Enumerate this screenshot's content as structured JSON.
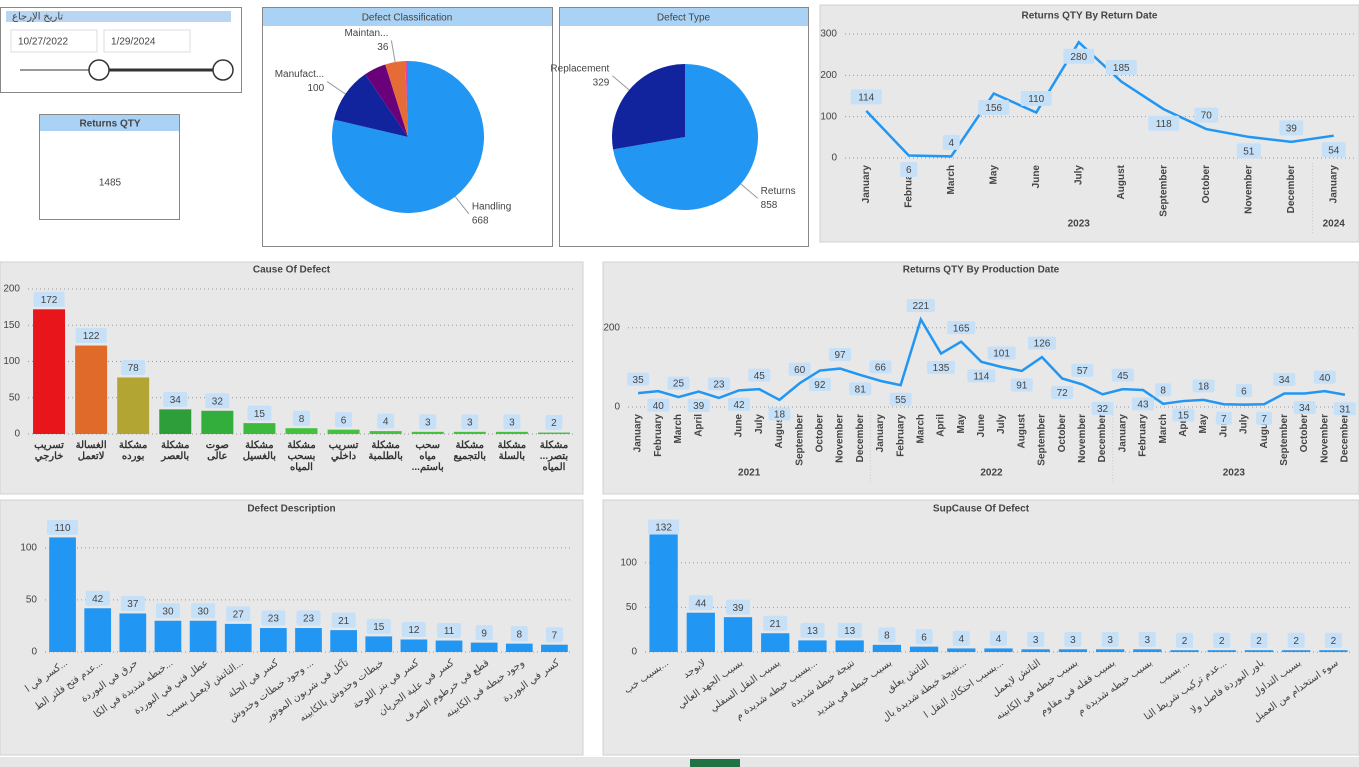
{
  "slicer": {
    "title": "تاريخ الإرجاع",
    "start": "10/27/2022",
    "end": "1/29/2024"
  },
  "card": {
    "title": "Returns QTY",
    "value": 1485
  },
  "chart_data": [
    {
      "type": "pie",
      "title": "Defect Classification",
      "categories": [
        "Handling",
        "Manufact...",
        null,
        "Maintan...",
        null
      ],
      "values": [
        668,
        100,
        40,
        36,
        5
      ],
      "colors": [
        "#2196f3",
        "#12239e",
        "#6b007b",
        "#e66c37",
        "#e044a7"
      ]
    },
    {
      "type": "pie",
      "title": "Defect Type",
      "categories": [
        "Returns",
        "Replacement"
      ],
      "values": [
        858,
        329
      ],
      "colors": [
        "#2196f3",
        "#12239e"
      ]
    },
    {
      "type": "line",
      "title": "Returns QTY By Return Date",
      "categories": [
        "January",
        "February",
        "March",
        "May",
        "June",
        "July",
        "August",
        "September",
        "October",
        "November",
        "December",
        "January"
      ],
      "years": [
        "2023",
        "2023",
        "2023",
        "2023",
        "2023",
        "2023",
        "2023",
        "2023",
        "2023",
        "2023",
        "2023",
        "2024"
      ],
      "values": [
        114,
        6,
        4,
        156,
        110,
        280,
        185,
        118,
        70,
        51,
        39,
        54
      ],
      "color": "#2196f3",
      "ylim": [
        0,
        300
      ],
      "yticks": [
        0,
        100,
        200,
        300
      ],
      "grid": true
    },
    {
      "type": "bar",
      "title": "Cause Of Defect",
      "categories": [
        "تسريب خارجي",
        "الغسالة لاتعمل",
        "مشكلة بورده",
        "مشكلة بالعصر",
        "صوت عالى",
        "مشكلة بالغسيل",
        "مشكلة بسحب المياه",
        "تسريب داخلي",
        "مشكلة بالطلمبة",
        "سحب مياه باستم...",
        "مشكلة بالتجميع",
        "مشكلة بالسلة",
        "مشكلة بتصر... المياه"
      ],
      "values": [
        172,
        122,
        78,
        34,
        32,
        15,
        8,
        6,
        4,
        3,
        3,
        3,
        2
      ],
      "colors": [
        "#e8151b",
        "#e06a2a",
        "#b3a533",
        "#2e9e3a",
        "#33ad3c",
        "#3dba3d",
        "#45c23d",
        "#45c23d",
        "#45c23d",
        "#45c23d",
        "#45c23d",
        "#45c23d",
        "#45c23d"
      ],
      "ylim": [
        0,
        200
      ],
      "yticks": [
        0,
        50,
        100,
        150,
        200
      ],
      "grid": true
    },
    {
      "type": "line",
      "title": "Returns QTY By Production Date",
      "categories": [
        "January",
        "February",
        "March",
        "April",
        null,
        "June",
        "July",
        "August",
        "September",
        "October",
        "November",
        "December",
        "January",
        "February",
        "March",
        "April",
        "May",
        "June",
        "July",
        "August",
        "September",
        "October",
        "November",
        "December",
        "January",
        "February",
        "March",
        "April",
        "May",
        "June",
        "July",
        "August",
        "September",
        "October",
        "November",
        "December"
      ],
      "years": [
        "2021",
        "2021",
        "2021",
        "2021",
        "2021",
        "2021",
        "2021",
        "2021",
        "2021",
        "2021",
        "2021",
        "2021",
        "2022",
        "2022",
        "2022",
        "2022",
        "2022",
        "2022",
        "2022",
        "2022",
        "2022",
        "2022",
        "2022",
        "2022",
        "2023",
        "2023",
        "2023",
        "2023",
        "2023",
        "2023",
        "2023",
        "2023",
        "2023",
        "2023",
        "2023",
        "2023"
      ],
      "values": [
        35,
        40,
        25,
        39,
        23,
        42,
        45,
        18,
        60,
        92,
        97,
        81,
        66,
        55,
        221,
        135,
        165,
        114,
        101,
        91,
        126,
        72,
        57,
        32,
        45,
        43,
        8,
        15,
        18,
        7,
        6,
        7,
        34,
        34,
        40,
        31
      ],
      "color": "#2196f3",
      "ylim": [
        0,
        260
      ],
      "yticks": [
        0,
        200
      ],
      "grid": true
    },
    {
      "type": "bar",
      "title": "Defect Description",
      "categories": [
        "كسر في ا...",
        "عدم فتح فلتر الط...",
        "حرق في البوردة",
        "خبطه شديدة في الكا...",
        "عطل فني في البوردة",
        "التاتش لايعمل بسبب...",
        "كسر في الحلة",
        "وجود خبطات وخدوش ...",
        "تآكل في شربون الموتور",
        "خبطات وخدوش بالكابينه",
        "كسر في بنز اللوحة",
        "كسر في علبة الجريان",
        "قطع في خرطوم الصرف",
        "وجود خبطه في الكابينه",
        "كسر في البوردة"
      ],
      "values": [
        110,
        42,
        37,
        30,
        30,
        27,
        23,
        23,
        21,
        15,
        12,
        11,
        9,
        8,
        7
      ],
      "color": "#2196f3",
      "ylim": [
        0,
        120
      ],
      "yticks": [
        0,
        50,
        100
      ],
      "grid": true
    },
    {
      "type": "bar",
      "title": "SupCause Of Defect",
      "categories": [
        "بسبب خب...",
        "لايوجد",
        "بسبب الجهد العالي",
        "بسبب النقل السفلي",
        "بسبب خبطه شديدة م...",
        "نتيجة خبطة شديدة",
        "بسبب خبطه في شديد",
        "التاتش يعلق",
        "نتيجة خبطة شديدة بال...",
        "بسبب احتكاك النقل ا...",
        "التاتش لايعمل",
        "بسبب خبطه في الكابينه",
        "بسبب قفله في مقاوم",
        "بسبب خبطه شديدة م",
        "بسبب ...",
        "عدم تركيب شريط النا...",
        "باور البوردة فاصل ولا",
        "بسبب التداول",
        "سوء استخدام من العميل"
      ],
      "values": [
        132,
        44,
        39,
        21,
        13,
        13,
        8,
        6,
        4,
        4,
        3,
        3,
        3,
        3,
        2,
        2,
        2,
        2,
        2
      ],
      "color": "#2196f3",
      "ylim": [
        0,
        140
      ],
      "yticks": [
        0,
        50,
        100
      ],
      "grid": true
    }
  ]
}
